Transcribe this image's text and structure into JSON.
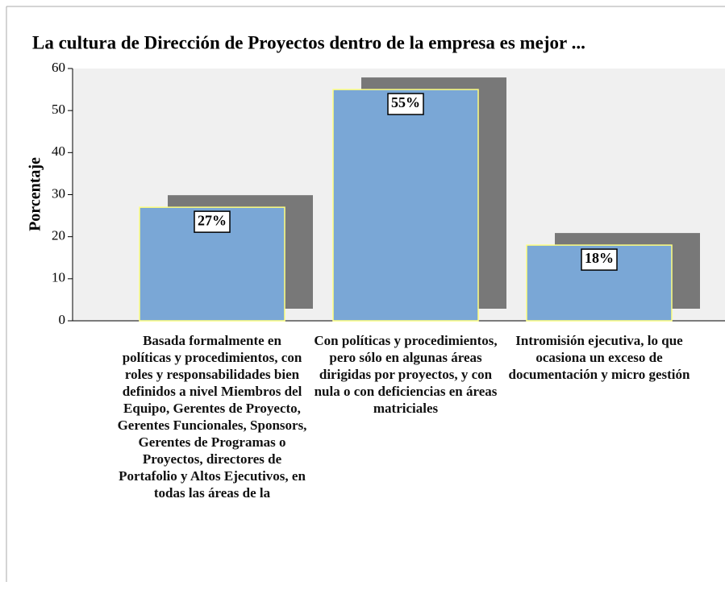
{
  "chart_data": {
    "type": "bar",
    "title": "La cultura de Dirección de Proyectos dentro de la empresa es mejor ...",
    "y_label": "Porcentaje",
    "categories": [
      "Basada formalmente en políticas y procedimientos, con roles y responsabilidades bien definidos a nivel Miembros del Equipo, Gerentes de Proyecto, Gerentes Funcionales, Sponsors, Gerentes de Programas o Proyectos, directores de Portafolio y Altos Ejecutivos, en todas las áreas de la",
      "Con políticas y procedimientos, pero sólo en algunas áreas dirigidas por proyectos, y con nula o con deficiencias en áreas matriciales",
      "Intromisión ejecutiva, lo que ocasiona un exceso de documentación y micro gestión"
    ],
    "values": [
      27,
      55,
      18
    ],
    "value_labels": [
      "27%",
      "55%",
      "18%"
    ],
    "color": "#7aa7d6",
    "ylim": [
      0,
      60
    ],
    "yticks": [
      0,
      10,
      20,
      30,
      40,
      50,
      60
    ],
    "grid": false
  }
}
